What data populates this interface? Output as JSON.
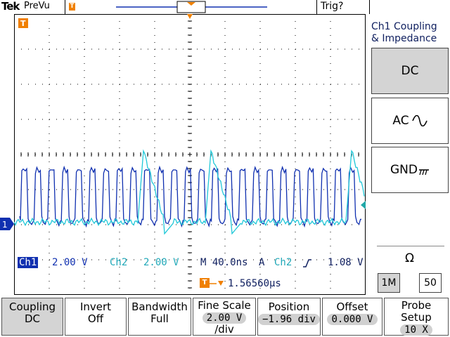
{
  "top": {
    "brand": "Tek",
    "mode": "PreVu",
    "trigger_status": "Trig?"
  },
  "readout": {
    "ch1_label": "Ch1",
    "ch1_scale": "2.00 V",
    "ch2_label": "Ch2",
    "ch2_scale": "2.00 V",
    "timebase": "M 40.0ns",
    "trig_mode": "A",
    "trig_source": "Ch2",
    "trig_level": "1.08 V",
    "trig_position": "1.56560µs"
  },
  "side_menu": {
    "title_line1": "Ch1 Coupling",
    "title_line2": "& Impedance",
    "dc": "DC",
    "ac": "AC",
    "gnd": "GND",
    "ohm_symbol": "Ω",
    "imp_1m": "1M",
    "imp_50": "50"
  },
  "bottom_menu": [
    {
      "line1": "Coupling",
      "line2": "DC"
    },
    {
      "line1": "Invert",
      "line2": "Off"
    },
    {
      "line1": "Bandwidth",
      "line2": "Full"
    },
    {
      "line1": "Fine Scale",
      "line2": "2.00 V",
      "line3": "/div"
    },
    {
      "line1": "Position",
      "line2": "−1.96 div"
    },
    {
      "line1": "Offset",
      "line2": "0.000 V"
    },
    {
      "line1": "Probe",
      "line2": "Setup",
      "line3": "10 X"
    }
  ],
  "colors": {
    "ch1": "#1030b0",
    "ch2": "#20c8d8",
    "trigger": "#f08000",
    "grid": "#000000"
  },
  "icons": {
    "trigger_marker": "trigger-t-icon",
    "ch1_marker": "ch1-ground-marker-icon",
    "ac_symbol": "sine-wave-icon",
    "gnd_symbol": "ground-icon"
  }
}
